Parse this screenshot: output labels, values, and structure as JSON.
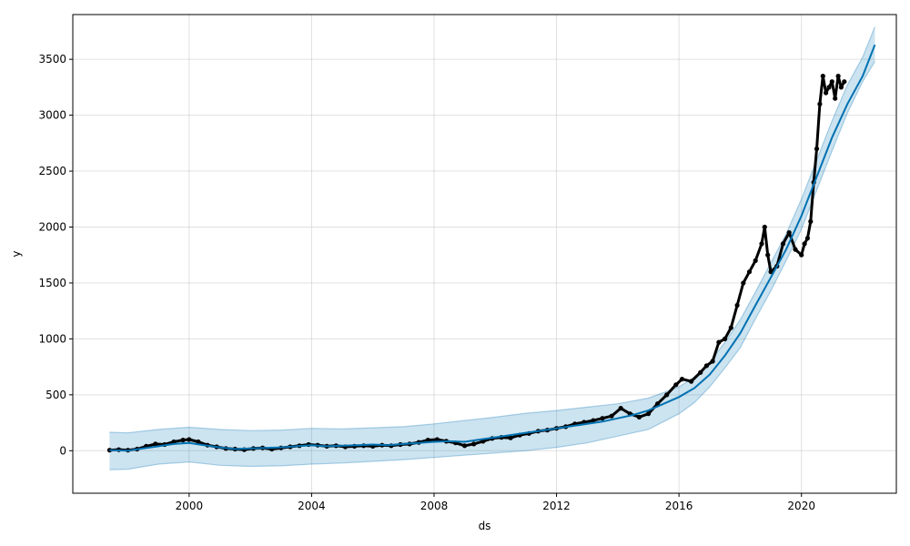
{
  "chart_data": {
    "type": "line",
    "xlabel": "ds",
    "ylabel": "y",
    "x_ticks": [
      "2000",
      "2004",
      "2008",
      "2012",
      "2016",
      "2020"
    ],
    "y_ticks": [
      "0",
      "500",
      "1000",
      "1500",
      "2000",
      "2500",
      "3000",
      "3500"
    ],
    "xlim": [
      1996.2,
      2023.1
    ],
    "ylim": [
      -380,
      3900
    ],
    "grid": true,
    "colors": {
      "forecast_line": "#0072b2",
      "uncertainty_band": "#0072b2",
      "observed_points": "#000000",
      "grid": "#cccccc"
    },
    "series": [
      {
        "kind": "forecast_yhat",
        "x": [
          1997.4,
          1998.0,
          1998.5,
          1999.0,
          1999.5,
          2000.0,
          2000.5,
          2001.0,
          2001.5,
          2002.0,
          2002.5,
          2003.0,
          2003.5,
          2004.0,
          2004.5,
          2005.0,
          2005.5,
          2006.0,
          2006.5,
          2007.0,
          2007.5,
          2008.0,
          2008.5,
          2009.0,
          2009.5,
          2010.0,
          2010.5,
          2011.0,
          2011.5,
          2012.0,
          2012.5,
          2013.0,
          2013.5,
          2014.0,
          2014.5,
          2015.0,
          2015.5,
          2016.0,
          2016.5,
          2017.0,
          2017.5,
          2018.0,
          2018.5,
          2019.0,
          2019.5,
          2020.0,
          2020.5,
          2021.0,
          2021.5,
          2022.0,
          2022.4
        ],
        "y": [
          5,
          0,
          20,
          40,
          60,
          70,
          50,
          30,
          15,
          20,
          25,
          30,
          40,
          50,
          40,
          45,
          50,
          55,
          50,
          60,
          70,
          80,
          85,
          80,
          100,
          120,
          140,
          160,
          180,
          200,
          220,
          240,
          260,
          290,
          320,
          360,
          420,
          480,
          560,
          680,
          850,
          1050,
          1300,
          1550,
          1800,
          2100,
          2450,
          2800,
          3100,
          3350,
          3630
        ]
      },
      {
        "kind": "uncertainty_upper",
        "x": [
          1997.4,
          1998.0,
          1999.0,
          2000.0,
          2001.0,
          2002.0,
          2003.0,
          2004.0,
          2005.0,
          2006.0,
          2007.0,
          2008.0,
          2009.0,
          2010.0,
          2011.0,
          2012.0,
          2013.0,
          2014.0,
          2015.0,
          2016.0,
          2016.5,
          2017.0,
          2017.5,
          2018.0,
          2018.5,
          2019.0,
          2019.5,
          2020.0,
          2020.5,
          2021.0,
          2021.5,
          2022.0,
          2022.4
        ],
        "y": [
          165,
          160,
          190,
          210,
          190,
          180,
          185,
          200,
          195,
          205,
          215,
          240,
          270,
          300,
          335,
          360,
          390,
          420,
          470,
          570,
          660,
          790,
          970,
          1170,
          1420,
          1680,
          1940,
          2250,
          2600,
          2950,
          3270,
          3520,
          3790
        ]
      },
      {
        "kind": "uncertainty_lower",
        "x": [
          1997.4,
          1998.0,
          1999.0,
          2000.0,
          2001.0,
          2002.0,
          2003.0,
          2004.0,
          2005.0,
          2006.0,
          2007.0,
          2008.0,
          2009.0,
          2010.0,
          2011.0,
          2012.0,
          2013.0,
          2014.0,
          2015.0,
          2016.0,
          2016.5,
          2017.0,
          2017.5,
          2018.0,
          2018.5,
          2019.0,
          2019.5,
          2020.0,
          2020.5,
          2021.0,
          2021.5,
          2022.0,
          2022.4
        ],
        "y": [
          -170,
          -165,
          -120,
          -100,
          -130,
          -140,
          -135,
          -120,
          -110,
          -95,
          -80,
          -60,
          -40,
          -20,
          0,
          30,
          70,
          130,
          190,
          330,
          430,
          570,
          740,
          920,
          1180,
          1430,
          1700,
          1980,
          2330,
          2680,
          3020,
          3300,
          3480
        ]
      },
      {
        "kind": "observed_points",
        "x": [
          1997.4,
          1997.7,
          1998.0,
          1998.3,
          1998.6,
          1998.9,
          1999.2,
          1999.5,
          1999.8,
          2000.0,
          2000.3,
          2000.6,
          2000.9,
          2001.2,
          2001.5,
          2001.8,
          2002.1,
          2002.4,
          2002.7,
          2003.0,
          2003.3,
          2003.6,
          2003.9,
          2004.2,
          2004.5,
          2004.8,
          2005.1,
          2005.4,
          2005.7,
          2006.0,
          2006.3,
          2006.6,
          2006.9,
          2007.2,
          2007.5,
          2007.8,
          2008.1,
          2008.4,
          2008.7,
          2009.0,
          2009.3,
          2009.6,
          2009.9,
          2010.2,
          2010.5,
          2010.8,
          2011.1,
          2011.4,
          2011.7,
          2012.0,
          2012.3,
          2012.6,
          2012.9,
          2013.2,
          2013.5,
          2013.8,
          2014.1,
          2014.4,
          2014.7,
          2015.0,
          2015.3,
          2015.6,
          2015.9,
          2016.1,
          2016.4,
          2016.7,
          2016.9,
          2017.1,
          2017.3,
          2017.5,
          2017.7,
          2017.9,
          2018.1,
          2018.3,
          2018.5,
          2018.7,
          2018.8,
          2018.9,
          2019.0,
          2019.2,
          2019.4,
          2019.6,
          2019.8,
          2020.0,
          2020.1,
          2020.2,
          2020.3,
          2020.4,
          2020.5,
          2020.6,
          2020.7,
          2020.8,
          2020.9,
          2021.0,
          2021.1,
          2021.2,
          2021.3,
          2021.4
        ],
        "y": [
          5,
          10,
          5,
          15,
          40,
          60,
          55,
          80,
          95,
          100,
          80,
          50,
          35,
          20,
          15,
          10,
          20,
          25,
          15,
          25,
          35,
          45,
          55,
          50,
          40,
          45,
          35,
          40,
          45,
          40,
          50,
          45,
          55,
          60,
          75,
          95,
          100,
          85,
          70,
          45,
          60,
          85,
          110,
          120,
          115,
          140,
          155,
          175,
          185,
          200,
          215,
          240,
          255,
          270,
          290,
          310,
          380,
          330,
          300,
          330,
          420,
          500,
          590,
          640,
          620,
          700,
          760,
          800,
          970,
          1000,
          1100,
          1300,
          1500,
          1600,
          1700,
          1850,
          2000,
          1750,
          1600,
          1650,
          1850,
          1950,
          1800,
          1750,
          1850,
          1900,
          2050,
          2400,
          2700,
          3100,
          3350,
          3200,
          3250,
          3300,
          3150,
          3350,
          3250,
          3300
        ]
      }
    ]
  }
}
